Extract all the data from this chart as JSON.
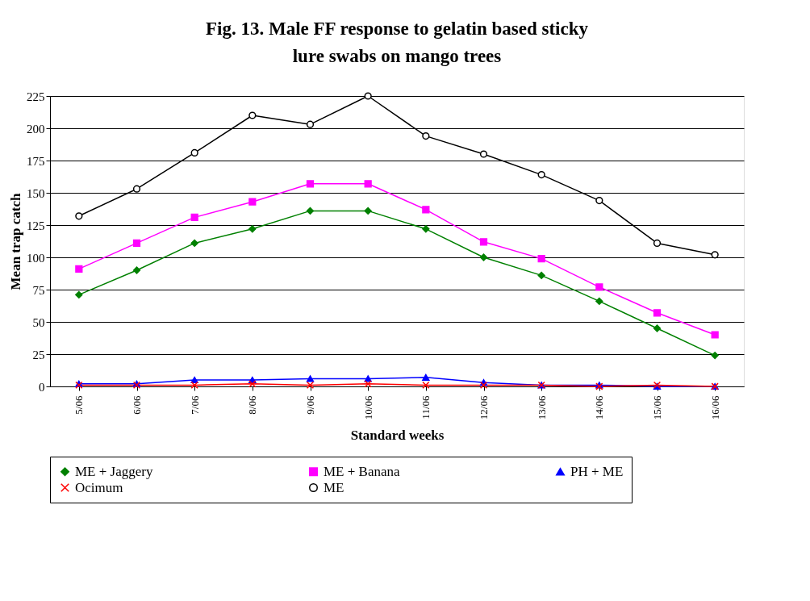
{
  "chart_data": {
    "type": "line",
    "title": "Fig.  13. Male FF response to gelatin based sticky lure swabs on mango trees",
    "xlabel": "Standard weeks",
    "ylabel": "Mean trap catch",
    "categories": [
      "5/06",
      "6/06",
      "7/06",
      "8/06",
      "9/06",
      "10/06",
      "11/06",
      "12/06",
      "13/06",
      "14/06",
      "15/06",
      "16/06"
    ],
    "series": [
      {
        "name": "ME + Jaggery",
        "color": "#008000",
        "marker": "diamond",
        "values": [
          71,
          90,
          111,
          122,
          136,
          136,
          122,
          100,
          86,
          66,
          45,
          24
        ]
      },
      {
        "name": "ME + Banana",
        "color": "#ff00ff",
        "marker": "square",
        "values": [
          91,
          111,
          131,
          143,
          157,
          157,
          137,
          112,
          99,
          77,
          57,
          40
        ]
      },
      {
        "name": "PH + ME",
        "color": "#0000ff",
        "marker": "triangle",
        "values": [
          2,
          2,
          5,
          5,
          6,
          6,
          7,
          3,
          1,
          1,
          0,
          0
        ]
      },
      {
        "name": "Ocimum",
        "color": "#ff0000",
        "marker": "cross",
        "values": [
          1,
          1,
          1,
          2,
          1,
          2,
          1,
          1,
          1,
          0,
          1,
          0
        ]
      },
      {
        "name": "ME",
        "color": "#000000",
        "marker": "circle",
        "values": [
          132,
          153,
          181,
          210,
          203,
          225,
          194,
          180,
          164,
          144,
          111,
          102
        ]
      }
    ],
    "ylim": [
      0,
      225
    ],
    "yticks": [
      0,
      25,
      50,
      75,
      100,
      125,
      150,
      175,
      200,
      225
    ],
    "grid": "y",
    "legend": "bottom"
  }
}
